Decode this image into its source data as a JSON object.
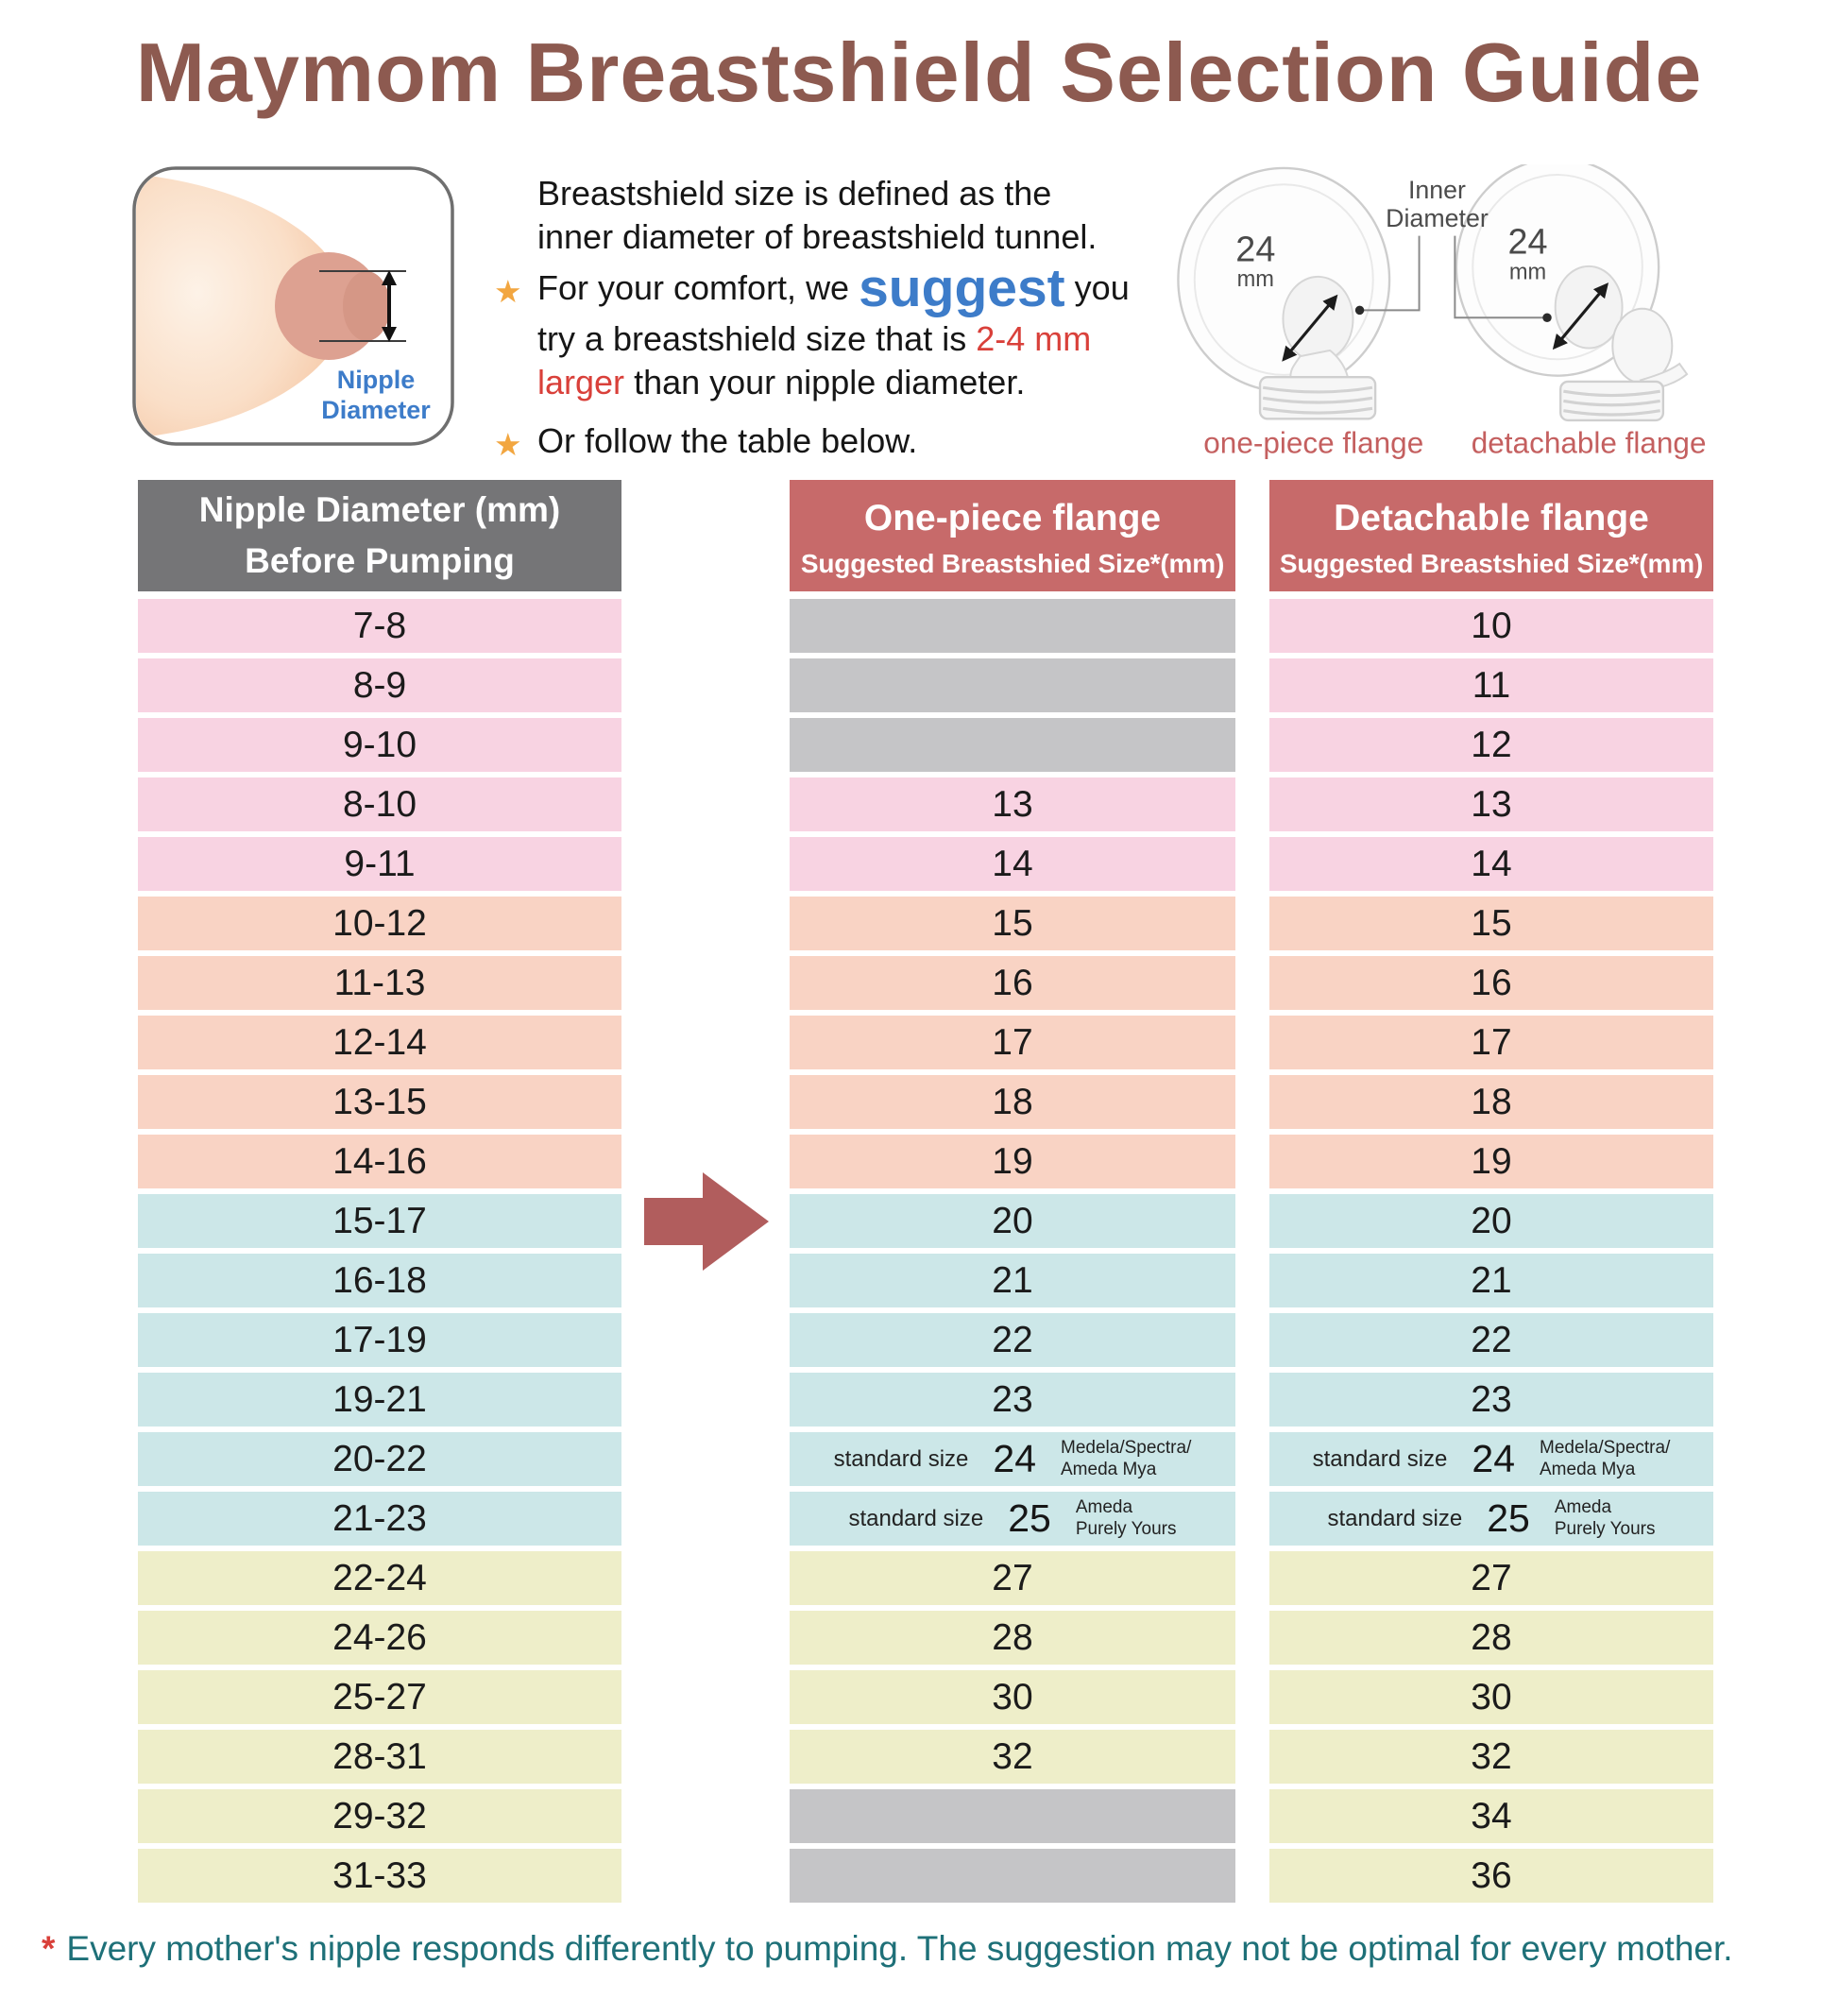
{
  "title": "Maymom Breastshield Selection Guide",
  "intro": {
    "line1": "Breastshield size is defined as the",
    "line2": "inner diameter of breastshield tunnel.",
    "bullet1_pre": "For your comfort, we",
    "bullet1_emphasis": "suggest",
    "bullet1_post": "you",
    "bullet1_line2": "try a breastshield size that is",
    "bullet1_line2_red": "2-4 mm",
    "bullet1_line3_red": "larger",
    "bullet1_line3": "than your nipple diameter.",
    "bullet2": "Or follow the table below."
  },
  "left_diagram": {
    "label_line1": "Nipple",
    "label_line2": "Diameter"
  },
  "right_diagram": {
    "inner_diameter_line1": "Inner",
    "inner_diameter_line2": "Diameter",
    "one_piece_size": "24",
    "one_piece_unit": "mm",
    "detachable_size": "24",
    "detachable_unit": "mm",
    "one_piece_caption": "one-piece flange",
    "detachable_caption": "detachable flange"
  },
  "table": {
    "header": {
      "col1_line1": "Nipple Diameter (mm)",
      "col1_line2": "Before Pumping",
      "col2_line1": "One-piece flange",
      "col2_line2": "Suggested Breastshied Size*(mm)",
      "col3_line1": "Detachable flange",
      "col3_line2": "Suggested Breastshied Size*(mm)"
    },
    "rows": [
      {
        "range": "7-8",
        "tone": "pink",
        "one_piece": null,
        "detachable": "10"
      },
      {
        "range": "8-9",
        "tone": "pink",
        "one_piece": null,
        "detachable": "11"
      },
      {
        "range": "9-10",
        "tone": "pink",
        "one_piece": null,
        "detachable": "12"
      },
      {
        "range": "8-10",
        "tone": "pink",
        "one_piece": "13",
        "detachable": "13"
      },
      {
        "range": "9-11",
        "tone": "pink",
        "one_piece": "14",
        "detachable": "14"
      },
      {
        "range": "10-12",
        "tone": "salmon",
        "one_piece": "15",
        "detachable": "15"
      },
      {
        "range": "11-13",
        "tone": "salmon",
        "one_piece": "16",
        "detachable": "16"
      },
      {
        "range": "12-14",
        "tone": "salmon",
        "one_piece": "17",
        "detachable": "17"
      },
      {
        "range": "13-15",
        "tone": "salmon",
        "one_piece": "18",
        "detachable": "18"
      },
      {
        "range": "14-16",
        "tone": "salmon",
        "one_piece": "19",
        "detachable": "19"
      },
      {
        "range": "15-17",
        "tone": "blue",
        "one_piece": "20",
        "detachable": "20",
        "arrow": true
      },
      {
        "range": "16-18",
        "tone": "blue",
        "one_piece": "21",
        "detachable": "21"
      },
      {
        "range": "17-19",
        "tone": "blue",
        "one_piece": "22",
        "detachable": "22"
      },
      {
        "range": "19-21",
        "tone": "blue",
        "one_piece": "23",
        "detachable": "23"
      },
      {
        "range": "20-22",
        "tone": "blue",
        "standard": {
          "label": "standard size",
          "size": "24",
          "brand_line1": "Medela/Spectra/",
          "brand_line2": "Ameda Mya"
        }
      },
      {
        "range": "21-23",
        "tone": "blue",
        "standard": {
          "label": "standard size",
          "size": "25",
          "brand_line1": "Ameda",
          "brand_line2": "Purely Yours"
        }
      },
      {
        "range": "22-24",
        "tone": "yellow",
        "one_piece": "27",
        "detachable": "27"
      },
      {
        "range": "24-26",
        "tone": "yellow",
        "one_piece": "28",
        "detachable": "28"
      },
      {
        "range": "25-27",
        "tone": "yellow",
        "one_piece": "30",
        "detachable": "30"
      },
      {
        "range": "28-31",
        "tone": "yellow",
        "one_piece": "32",
        "detachable": "32"
      },
      {
        "range": "29-32",
        "tone": "yellow",
        "one_piece": null,
        "detachable": "34"
      },
      {
        "range": "31-33",
        "tone": "yellow",
        "one_piece": null,
        "detachable": "36"
      }
    ]
  },
  "footnote": {
    "asterisk": "*",
    "text": "Every mother's nipple responds differently to pumping. The suggestion may not be optimal for every mother."
  },
  "colors": {
    "title_brown": "#8d5a50",
    "header_gray": "#757577",
    "header_rose": "#c76a6a",
    "row_pink": "#f8d3e2",
    "row_salmon": "#f9d3c4",
    "row_blue": "#cce7e8",
    "row_yellow": "#eeeec9",
    "empty_gray": "#c5c5c7",
    "arrow_rose": "#b15d5d",
    "star_gold": "#f2a640",
    "accent_blue": "#3d7cc9",
    "accent_red": "#d9403a",
    "footnote_teal": "#1e7078",
    "caption_rose": "#c45f5f"
  },
  "chart_data": {
    "type": "table",
    "title": "Maymom Breastshield Selection Guide",
    "columns": [
      "Nipple Diameter (mm) Before Pumping",
      "One-piece flange — Suggested Breastshied Size*(mm)",
      "Detachable flange — Suggested Breastshied Size*(mm)"
    ],
    "rows": [
      [
        "7-8",
        null,
        "10"
      ],
      [
        "8-9",
        null,
        "11"
      ],
      [
        "9-10",
        null,
        "12"
      ],
      [
        "8-10",
        "13",
        "13"
      ],
      [
        "9-11",
        "14",
        "14"
      ],
      [
        "10-12",
        "15",
        "15"
      ],
      [
        "11-13",
        "16",
        "16"
      ],
      [
        "12-14",
        "17",
        "17"
      ],
      [
        "13-15",
        "18",
        "18"
      ],
      [
        "14-16",
        "19",
        "19"
      ],
      [
        "15-17",
        "20",
        "20"
      ],
      [
        "16-18",
        "21",
        "21"
      ],
      [
        "17-19",
        "22",
        "22"
      ],
      [
        "19-21",
        "23",
        "23"
      ],
      [
        "20-22",
        "24 (standard size, Medela/Spectra/Ameda Mya)",
        "24 (standard size, Medela/Spectra/Ameda Mya)"
      ],
      [
        "21-23",
        "25 (standard size, Ameda Purely Yours)",
        "25 (standard size, Ameda Purely Yours)"
      ],
      [
        "22-24",
        "27",
        "27"
      ],
      [
        "24-26",
        "28",
        "28"
      ],
      [
        "25-27",
        "30",
        "30"
      ],
      [
        "28-31",
        "32",
        "32"
      ],
      [
        "29-32",
        null,
        "34"
      ],
      [
        "31-33",
        null,
        "36"
      ]
    ]
  }
}
